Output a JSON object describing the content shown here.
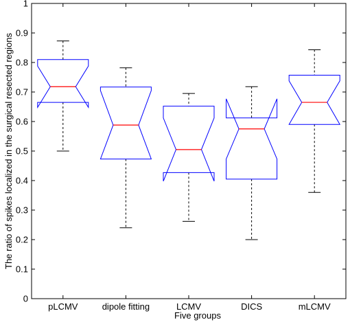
{
  "chart_data": {
    "type": "box",
    "notched": true,
    "title": "",
    "xlabel": "Five groups",
    "ylabel": "The ratio of spikes localized in the surgical resected regions",
    "ylim": [
      0,
      1
    ],
    "yticks": [
      0,
      0.1,
      0.2,
      0.3,
      0.4,
      0.5,
      0.6,
      0.7,
      0.8,
      0.9,
      1
    ],
    "ytick_labels": [
      "0",
      "0.1",
      "0.2",
      "0.3",
      "0.4",
      "0.5",
      "0.6",
      "0.7",
      "0.8",
      "0.9",
      "1"
    ],
    "categories": [
      "pLCMV",
      "dipole fitting",
      "LCMV",
      "DICS",
      "mLCMV"
    ],
    "boxes": [
      {
        "name": "pLCMV",
        "whisker_low": 0.5,
        "q1": 0.665,
        "median": 0.718,
        "q3": 0.81,
        "whisker_high": 0.873,
        "notch_low": 0.648,
        "notch_high": 0.788
      },
      {
        "name": "dipole fitting",
        "whisker_low": 0.24,
        "q1": 0.473,
        "median": 0.588,
        "q3": 0.717,
        "whisker_high": 0.782,
        "notch_low": 0.473,
        "notch_high": 0.705
      },
      {
        "name": "LCMV",
        "whisker_low": 0.262,
        "q1": 0.427,
        "median": 0.505,
        "q3": 0.652,
        "whisker_high": 0.695,
        "notch_low": 0.398,
        "notch_high": 0.612
      },
      {
        "name": "DICS",
        "whisker_low": 0.2,
        "q1": 0.405,
        "median": 0.575,
        "q3": 0.612,
        "whisker_high": 0.718,
        "notch_low": 0.473,
        "notch_high": 0.677
      },
      {
        "name": "mLCMV",
        "whisker_low": 0.36,
        "q1": 0.59,
        "median": 0.665,
        "q3": 0.757,
        "whisker_high": 0.843,
        "notch_low": 0.59,
        "notch_high": 0.738
      }
    ],
    "colors": {
      "box": "#0000ff",
      "median": "#ff0000",
      "whisker": "#000000",
      "axes": "#000000"
    }
  }
}
